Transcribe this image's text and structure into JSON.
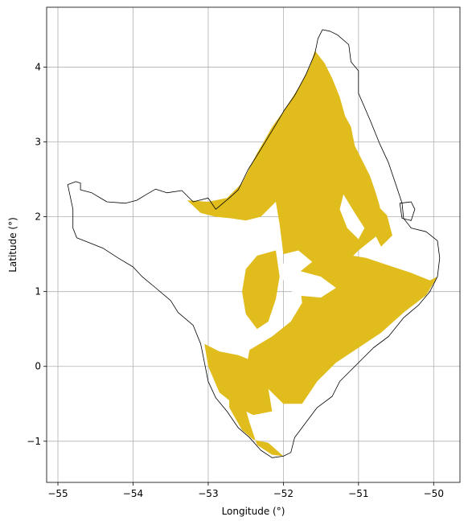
{
  "chart_data": {
    "type": "map",
    "title": "",
    "xlabel": "Longitude (°)",
    "ylabel": "Latitude (°)",
    "xlim": [
      -55.15,
      -49.65
    ],
    "ylim": [
      -1.55,
      4.8
    ],
    "grid": true,
    "x_ticks": [
      -55,
      -54,
      -53,
      -52,
      -51,
      -50
    ],
    "y_ticks": [
      -1,
      0,
      1,
      2,
      3,
      4
    ],
    "x_tick_labels": [
      "−55",
      "−54",
      "−53",
      "−52",
      "−51",
      "−50"
    ],
    "y_tick_labels": [
      "−1",
      "0",
      "1",
      "2",
      "3",
      "4"
    ],
    "fill_color": "#e0bc1c",
    "outline_color": "#000000",
    "regions": {
      "boundary": [
        [
          -54.87,
          2.43
        ],
        [
          -54.76,
          2.47
        ],
        [
          -54.7,
          2.45
        ],
        [
          -54.7,
          2.36
        ],
        [
          -54.55,
          2.32
        ],
        [
          -54.35,
          2.2
        ],
        [
          -54.1,
          2.18
        ],
        [
          -53.95,
          2.22
        ],
        [
          -53.82,
          2.3
        ],
        [
          -53.7,
          2.37
        ],
        [
          -53.55,
          2.32
        ],
        [
          -53.35,
          2.35
        ],
        [
          -53.2,
          2.2
        ],
        [
          -53.0,
          2.25
        ],
        [
          -52.9,
          2.1
        ],
        [
          -52.72,
          2.25
        ],
        [
          -52.6,
          2.36
        ],
        [
          -52.47,
          2.63
        ],
        [
          -52.3,
          2.9
        ],
        [
          -52.12,
          3.2
        ],
        [
          -51.99,
          3.42
        ],
        [
          -51.85,
          3.62
        ],
        [
          -51.7,
          3.9
        ],
        [
          -51.58,
          4.18
        ],
        [
          -51.54,
          4.38
        ],
        [
          -51.48,
          4.5
        ],
        [
          -51.38,
          4.48
        ],
        [
          -51.28,
          4.43
        ],
        [
          -51.13,
          4.3
        ],
        [
          -51.1,
          4.07
        ],
        [
          -51.0,
          3.95
        ],
        [
          -51.0,
          3.65
        ],
        [
          -50.85,
          3.3
        ],
        [
          -50.72,
          2.98
        ],
        [
          -50.6,
          2.72
        ],
        [
          -50.5,
          2.42
        ],
        [
          -50.42,
          2.18
        ],
        [
          -50.4,
          1.98
        ],
        [
          -50.3,
          1.85
        ],
        [
          -50.1,
          1.8
        ],
        [
          -49.95,
          1.68
        ],
        [
          -49.92,
          1.45
        ],
        [
          -49.95,
          1.2
        ],
        [
          -50.05,
          1.0
        ],
        [
          -50.2,
          0.82
        ],
        [
          -50.4,
          0.65
        ],
        [
          -50.6,
          0.4
        ],
        [
          -50.8,
          0.25
        ],
        [
          -51.0,
          0.05
        ],
        [
          -51.25,
          -0.2
        ],
        [
          -51.35,
          -0.4
        ],
        [
          -51.55,
          -0.55
        ],
        [
          -51.7,
          -0.75
        ],
        [
          -51.85,
          -0.95
        ],
        [
          -51.9,
          -1.15
        ],
        [
          -52.0,
          -1.2
        ],
        [
          -52.15,
          -1.22
        ],
        [
          -52.3,
          -1.12
        ],
        [
          -52.45,
          -0.95
        ],
        [
          -52.6,
          -0.82
        ],
        [
          -52.75,
          -0.6
        ],
        [
          -52.9,
          -0.42
        ],
        [
          -53.0,
          -0.2
        ],
        [
          -53.05,
          0.05
        ],
        [
          -53.1,
          0.3
        ],
        [
          -53.2,
          0.55
        ],
        [
          -53.4,
          0.72
        ],
        [
          -53.5,
          0.88
        ],
        [
          -53.7,
          1.05
        ],
        [
          -53.88,
          1.2
        ],
        [
          -54.0,
          1.33
        ],
        [
          -54.2,
          1.45
        ],
        [
          -54.4,
          1.58
        ],
        [
          -54.6,
          1.66
        ],
        [
          -54.75,
          1.72
        ],
        [
          -54.8,
          1.85
        ],
        [
          -54.8,
          2.1
        ],
        [
          -54.87,
          2.43
        ]
      ],
      "island": [
        [
          -50.45,
          2.18
        ],
        [
          -50.3,
          2.2
        ],
        [
          -50.25,
          2.1
        ],
        [
          -50.3,
          1.95
        ],
        [
          -50.42,
          1.98
        ],
        [
          -50.45,
          2.18
        ]
      ],
      "fill_polygons": [
        [
          [
            -53.28,
            2.22
          ],
          [
            -53.0,
            2.2
          ],
          [
            -52.75,
            2.25
          ],
          [
            -52.55,
            2.45
          ],
          [
            -52.35,
            2.85
          ],
          [
            -52.15,
            3.2
          ],
          [
            -51.99,
            3.42
          ],
          [
            -51.8,
            3.72
          ],
          [
            -51.65,
            4.0
          ],
          [
            -51.58,
            4.22
          ],
          [
            -51.45,
            4.05
          ],
          [
            -51.35,
            3.85
          ],
          [
            -51.25,
            3.6
          ],
          [
            -51.18,
            3.35
          ],
          [
            -51.1,
            3.2
          ],
          [
            -51.05,
            2.95
          ],
          [
            -50.95,
            2.75
          ],
          [
            -50.85,
            2.55
          ],
          [
            -50.78,
            2.35
          ],
          [
            -50.72,
            2.15
          ],
          [
            -50.68,
            1.95
          ],
          [
            -50.75,
            1.75
          ],
          [
            -51.0,
            1.55
          ],
          [
            -51.2,
            1.35
          ],
          [
            -51.5,
            1.3
          ],
          [
            -51.8,
            1.55
          ],
          [
            -52.0,
            1.5
          ],
          [
            -52.05,
            1.9
          ],
          [
            -52.1,
            2.2
          ],
          [
            -52.3,
            2.0
          ],
          [
            -52.5,
            1.95
          ],
          [
            -52.7,
            1.98
          ],
          [
            -52.9,
            2.0
          ],
          [
            -53.1,
            2.05
          ],
          [
            -53.28,
            2.22
          ]
        ],
        [
          [
            -51.8,
            1.25
          ],
          [
            -51.55,
            1.45
          ],
          [
            -51.2,
            1.5
          ],
          [
            -50.9,
            1.45
          ],
          [
            -50.6,
            1.35
          ],
          [
            -50.3,
            1.25
          ],
          [
            -50.05,
            1.15
          ],
          [
            -49.95,
            1.2
          ],
          [
            -50.1,
            0.95
          ],
          [
            -50.4,
            0.72
          ],
          [
            -50.7,
            0.45
          ],
          [
            -51.0,
            0.25
          ],
          [
            -51.3,
            0.05
          ],
          [
            -51.55,
            -0.2
          ],
          [
            -51.75,
            -0.5
          ],
          [
            -52.0,
            -0.5
          ],
          [
            -52.2,
            -0.3
          ],
          [
            -52.5,
            -0.05
          ],
          [
            -52.45,
            0.22
          ],
          [
            -52.15,
            0.4
          ],
          [
            -51.9,
            0.6
          ],
          [
            -51.75,
            0.85
          ],
          [
            -51.8,
            1.25
          ]
        ],
        [
          [
            -52.5,
            1.3
          ],
          [
            -52.35,
            1.48
          ],
          [
            -52.1,
            1.55
          ],
          [
            -52.05,
            1.2
          ],
          [
            -52.1,
            0.9
          ],
          [
            -52.2,
            0.6
          ],
          [
            -52.35,
            0.5
          ],
          [
            -52.5,
            0.7
          ],
          [
            -52.55,
            1.0
          ],
          [
            -52.5,
            1.3
          ]
        ],
        [
          [
            -53.05,
            0.3
          ],
          [
            -52.85,
            0.2
          ],
          [
            -52.6,
            0.15
          ],
          [
            -52.35,
            0.05
          ],
          [
            -52.2,
            -0.3
          ],
          [
            -52.15,
            -0.6
          ],
          [
            -52.4,
            -0.65
          ],
          [
            -52.6,
            -0.55
          ],
          [
            -52.85,
            -0.35
          ],
          [
            -53.0,
            0.0
          ],
          [
            -53.05,
            0.3
          ]
        ],
        [
          [
            -52.72,
            -0.35
          ],
          [
            -52.55,
            -0.4
          ],
          [
            -52.45,
            -0.75
          ],
          [
            -52.35,
            -1.05
          ],
          [
            -52.15,
            -1.18
          ],
          [
            -52.0,
            -1.2
          ],
          [
            -52.2,
            -1.02
          ],
          [
            -52.4,
            -0.98
          ],
          [
            -52.55,
            -0.85
          ],
          [
            -52.72,
            -0.55
          ],
          [
            -52.72,
            -0.35
          ]
        ],
        [
          [
            -50.75,
            2.15
          ],
          [
            -50.62,
            2.02
          ],
          [
            -50.55,
            1.75
          ],
          [
            -50.7,
            1.6
          ],
          [
            -50.85,
            1.9
          ],
          [
            -50.75,
            2.15
          ]
        ]
      ],
      "holes": [
        [
          [
            -52.05,
            1.4
          ],
          [
            -51.8,
            1.28
          ],
          [
            -51.5,
            1.2
          ],
          [
            -51.3,
            1.05
          ],
          [
            -51.5,
            0.92
          ],
          [
            -51.85,
            0.95
          ],
          [
            -52.0,
            1.15
          ],
          [
            -52.05,
            1.4
          ]
        ],
        [
          [
            -51.2,
            2.3
          ],
          [
            -51.05,
            2.05
          ],
          [
            -50.92,
            1.85
          ],
          [
            -51.0,
            1.7
          ],
          [
            -51.15,
            1.85
          ],
          [
            -51.25,
            2.1
          ],
          [
            -51.2,
            2.3
          ]
        ]
      ]
    }
  }
}
